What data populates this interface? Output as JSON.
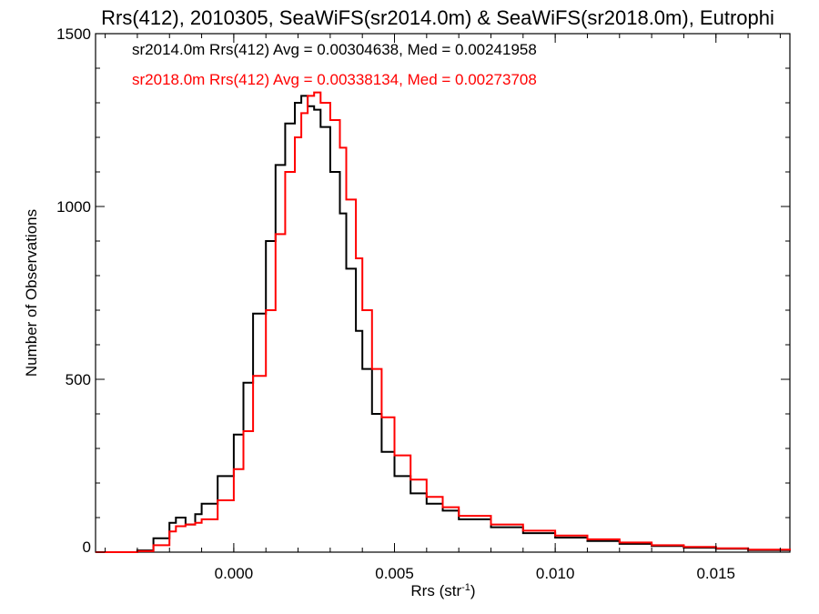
{
  "chart_data": {
    "type": "line",
    "title": "Rrs(412), 2010305, SeaWiFS(sr2014.0m) & SeaWiFS(sr2018.0m), Eutrophi",
    "xlabel": {
      "main": "Rrs (str",
      "sup": "-1",
      "close": ")"
    },
    "ylabel": "Number of Observations",
    "xlim": [
      -0.0043,
      0.0173
    ],
    "ylim": [
      0,
      1500
    ],
    "xticks": [
      0.0,
      0.005,
      0.01,
      0.015
    ],
    "xtick_labels": [
      "0.000",
      "0.005",
      "0.010",
      "0.015"
    ],
    "yticks": [
      0,
      500,
      1000,
      1500
    ],
    "ytick_labels": [
      "0",
      "500",
      "1000",
      "1500"
    ],
    "grid": false,
    "legend_position": "top-left",
    "legend_entries": [
      "sr2014.0m Rrs(412) Avg = 0.00304638, Med = 0.00241958",
      "sr2018.0m Rrs(412) Avg = 0.00338134, Med = 0.00273708"
    ],
    "series": [
      {
        "name": "sr2014.0m",
        "color": "#000000",
        "x": [
          -0.0043,
          -0.003,
          -0.0025,
          -0.002,
          -0.0018,
          -0.0015,
          -0.0012,
          -0.001,
          -0.0005,
          0.0,
          0.0003,
          0.0006,
          0.001,
          0.0013,
          0.0016,
          0.0019,
          0.0021,
          0.0023,
          0.0025,
          0.0027,
          0.003,
          0.0033,
          0.0035,
          0.0038,
          0.004,
          0.0043,
          0.0046,
          0.005,
          0.0055,
          0.006,
          0.0065,
          0.007,
          0.008,
          0.009,
          0.01,
          0.011,
          0.012,
          0.013,
          0.014,
          0.015,
          0.016,
          0.0173
        ],
        "y": [
          0,
          5,
          40,
          85,
          100,
          80,
          110,
          140,
          220,
          340,
          490,
          690,
          900,
          1120,
          1240,
          1300,
          1320,
          1290,
          1280,
          1230,
          1100,
          980,
          820,
          640,
          530,
          400,
          290,
          220,
          170,
          140,
          120,
          95,
          72,
          55,
          42,
          32,
          24,
          18,
          13,
          10,
          6,
          4
        ]
      },
      {
        "name": "sr2018.0m",
        "color": "#ff0000",
        "x": [
          -0.0043,
          -0.003,
          -0.0025,
          -0.002,
          -0.0018,
          -0.0015,
          -0.0012,
          -0.001,
          -0.0005,
          0.0,
          0.0003,
          0.0006,
          0.001,
          0.0013,
          0.0016,
          0.0019,
          0.0021,
          0.0023,
          0.0025,
          0.0027,
          0.003,
          0.0033,
          0.0035,
          0.0038,
          0.004,
          0.0043,
          0.0046,
          0.005,
          0.0055,
          0.006,
          0.0065,
          0.007,
          0.008,
          0.009,
          0.01,
          0.011,
          0.012,
          0.013,
          0.014,
          0.015,
          0.016,
          0.0173
        ],
        "y": [
          0,
          3,
          20,
          60,
          75,
          80,
          85,
          95,
          150,
          240,
          350,
          510,
          700,
          920,
          1100,
          1200,
          1270,
          1320,
          1330,
          1300,
          1250,
          1170,
          1020,
          850,
          700,
          530,
          390,
          280,
          210,
          160,
          130,
          105,
          80,
          62,
          48,
          37,
          28,
          20,
          15,
          11,
          7,
          5
        ]
      }
    ]
  }
}
